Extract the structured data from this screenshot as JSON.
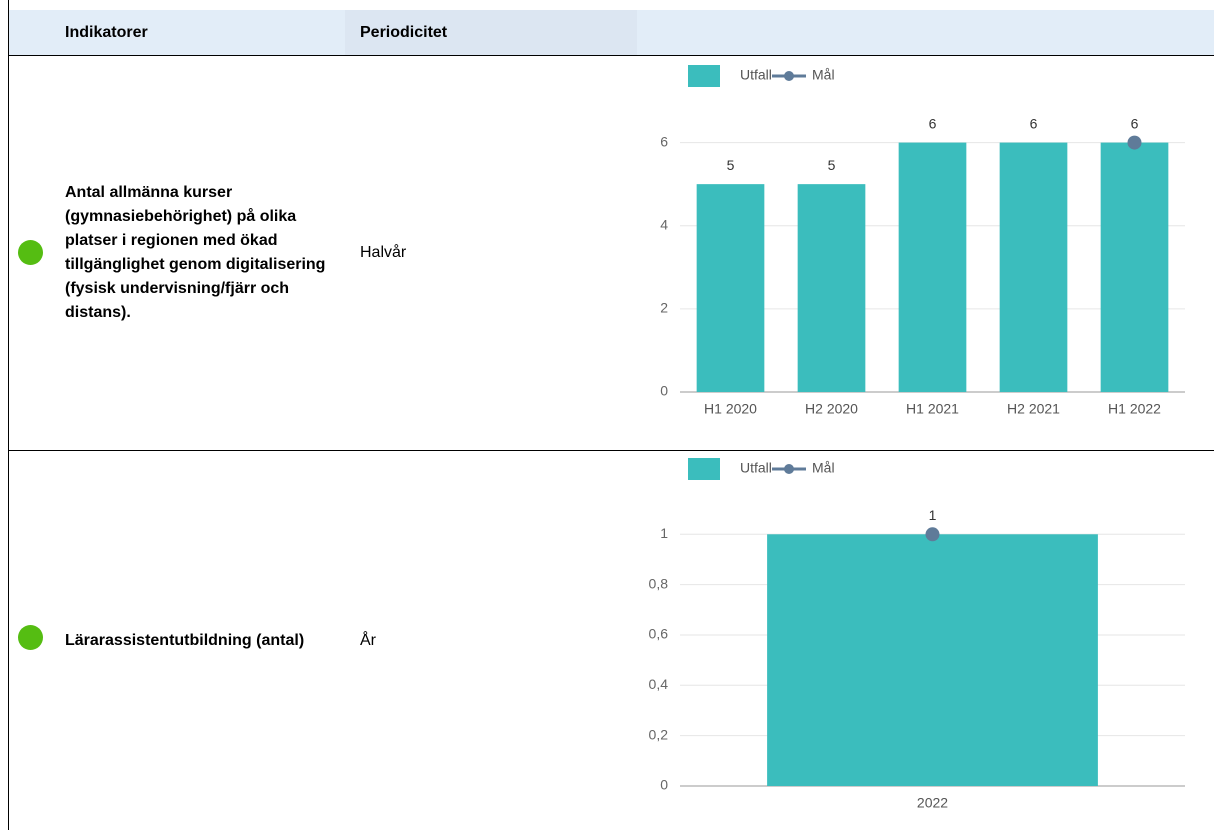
{
  "table": {
    "header": [
      "Indikatorer",
      "Periodicitet"
    ],
    "rows": [
      {
        "indicator": "Antal allmänna kurser (gymnasiebehörighet) på olika platser i regionen med ökad tillgänglighet genom digitalisering (fysisk undervisning/fjärr och distans).",
        "periodicity": "Halvår"
      },
      {
        "indicator": "Lärarassistentutbildning (antal)",
        "periodicity": "År"
      }
    ]
  },
  "chart_data": [
    {
      "type": "bar",
      "categories": [
        "H1 2020",
        "H2 2020",
        "H1 2021",
        "H2 2021",
        "H1 2022"
      ],
      "series": [
        {
          "name": "Utfall",
          "color": "#3bbdbd",
          "values": [
            5,
            5,
            6,
            6,
            6
          ]
        },
        {
          "name": "Mål",
          "color": "#5f7b99",
          "type": "line",
          "values": [
            null,
            null,
            null,
            null,
            6
          ]
        }
      ],
      "ylim": [
        0,
        7
      ],
      "yticks": [
        0,
        2,
        4,
        6
      ],
      "grid": true,
      "legend": "top"
    },
    {
      "type": "bar",
      "categories": [
        "2022"
      ],
      "series": [
        {
          "name": "Utfall",
          "color": "#3bbdbd",
          "values": [
            1
          ]
        },
        {
          "name": "Mål",
          "color": "#5f7b99",
          "type": "line",
          "values": [
            1
          ]
        }
      ],
      "ylim": [
        0,
        1.16
      ],
      "yticks": [
        0,
        {
          "value": 0.2,
          "label": "0,2"
        },
        {
          "value": 0.4,
          "label": "0,4"
        },
        {
          "value": 0.6,
          "label": "0,6"
        },
        {
          "value": 0.8,
          "label": "0,8"
        },
        1
      ],
      "grid": true,
      "legend": "top"
    }
  ]
}
